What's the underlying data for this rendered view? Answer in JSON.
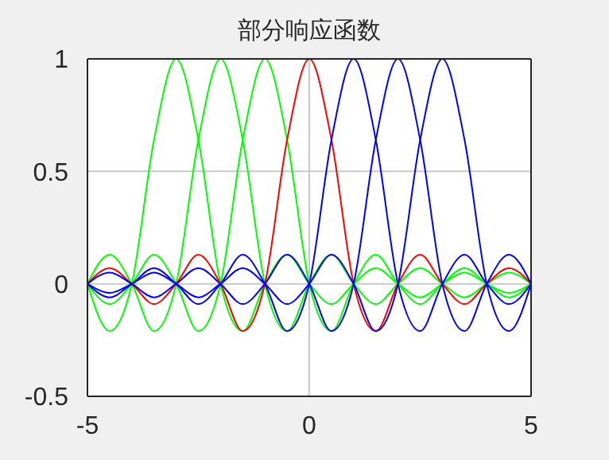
{
  "chart_data": {
    "type": "line",
    "title": "部分响应函数",
    "x": [
      -5,
      -4.5,
      -4,
      -3.5,
      -3,
      -2.5,
      -2,
      -1.5,
      -1,
      -0.5,
      0,
      0.5,
      1,
      1.5,
      2,
      2.5,
      3,
      3.5,
      4,
      4.5,
      5
    ],
    "series": [
      {
        "color": "#00ff00",
        "values": [
          0,
          -0.21,
          0,
          0.64,
          1,
          0.64,
          0,
          -0.21,
          0,
          0.13,
          0,
          -0.09,
          0,
          0.07,
          0,
          -0.06,
          0,
          0.05,
          0,
          -0.04,
          0
        ]
      },
      {
        "color": "#00ff00",
        "values": [
          0,
          0.13,
          0,
          -0.21,
          0,
          0.64,
          1,
          0.64,
          0,
          -0.21,
          0,
          0.13,
          0,
          -0.09,
          0,
          0.07,
          0,
          -0.06,
          0,
          0.05,
          0
        ]
      },
      {
        "color": "#00ff00",
        "values": [
          0,
          -0.09,
          0,
          0.13,
          0,
          -0.21,
          0,
          0.64,
          1,
          0.64,
          0,
          -0.21,
          0,
          0.13,
          0,
          -0.09,
          0,
          0.07,
          0,
          -0.06,
          0
        ]
      },
      {
        "color": "#ff0000",
        "values": [
          0,
          0.07,
          0,
          -0.09,
          0,
          0.13,
          0,
          -0.21,
          0,
          0.64,
          1,
          0.64,
          0,
          -0.21,
          0,
          0.13,
          0,
          -0.09,
          0,
          0.07,
          0
        ]
      },
      {
        "color": "#0000ff",
        "values": [
          0,
          -0.06,
          0,
          0.07,
          0,
          -0.09,
          0,
          0.13,
          0,
          -0.21,
          0,
          0.64,
          1,
          0.64,
          0,
          -0.21,
          0,
          0.13,
          0,
          -0.09,
          0
        ]
      },
      {
        "color": "#0000ff",
        "values": [
          0,
          0.05,
          0,
          -0.06,
          0,
          0.07,
          0,
          -0.09,
          0,
          0.13,
          0,
          -0.21,
          0,
          0.64,
          1,
          0.64,
          0,
          -0.21,
          0,
          0.13,
          0
        ]
      },
      {
        "color": "#0000ff",
        "values": [
          0,
          -0.04,
          0,
          0.05,
          0,
          -0.06,
          0,
          0.07,
          0,
          -0.09,
          0,
          0.13,
          0,
          -0.21,
          0,
          0.64,
          1,
          0.64,
          0,
          -0.21,
          0
        ]
      }
    ],
    "xlim": [
      -5,
      5
    ],
    "xticks": [
      -5,
      0,
      5
    ],
    "ylim": [
      -0.5,
      1
    ],
    "yticks": [
      -0.5,
      0,
      0.5,
      1
    ],
    "grid": true,
    "marker": "none",
    "line_style": "solid"
  }
}
